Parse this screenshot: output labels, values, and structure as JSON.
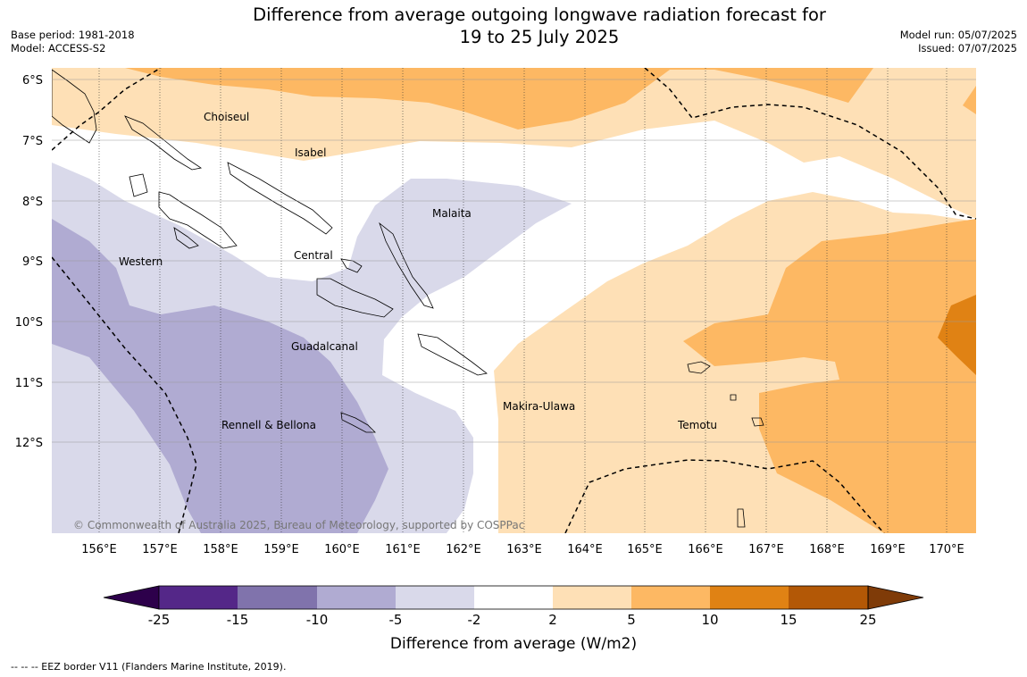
{
  "header": {
    "title_line1": "Difference from average outgoing longwave radiation forecast for",
    "title_line2": "19 to 25 July 2025",
    "base_period": "Base period: 1981-2018",
    "model": "Model: ACCESS-S2",
    "model_run": "Model run: 05/07/2025",
    "issued": "Issued: 07/07/2025"
  },
  "map": {
    "lon_ticks": [
      "156°E",
      "157°E",
      "158°E",
      "159°E",
      "160°E",
      "161°E",
      "162°E",
      "163°E",
      "164°E",
      "165°E",
      "166°E",
      "167°E",
      "168°E",
      "169°E",
      "170°E"
    ],
    "lat_ticks": [
      "6°S",
      "7°S",
      "8°S",
      "9°S",
      "10°S",
      "11°S",
      "12°S"
    ],
    "regions": {
      "choiseul": "Choiseul",
      "isabel": "Isabel",
      "malaita": "Malaita",
      "western": "Western",
      "central": "Central",
      "guadalcanal": "Guadalcanal",
      "makira": "Makira-Ulawa",
      "rennell": "Rennell & Bellona",
      "temotu": "Temotu"
    },
    "copyright": "© Commonwealth of Australia 2025, Bureau of Meteorology, supported by COSPPac",
    "colors": {
      "lt_m5": "#d9d9ea",
      "lt_m10": "#b0abd2",
      "lt_m15": "#8073ac",
      "lt_m25": "#542788",
      "below_m25": "#2d004b",
      "neutral": "#ffffff",
      "gt_2": "#fee0b6",
      "gt_5": "#fdb863",
      "gt_10": "#e08214",
      "gt_15": "#b35806",
      "above_25": "#7f3b08"
    }
  },
  "colorbar": {
    "labels": [
      "-25",
      "-15",
      "-10",
      "-5",
      "-2",
      "2",
      "5",
      "10",
      "15",
      "25"
    ],
    "title": "Difference from average (W/m2)"
  },
  "footer": {
    "legend": "--  --  -- EEZ border V11 (Flanders Marine Institute, 2019)."
  }
}
